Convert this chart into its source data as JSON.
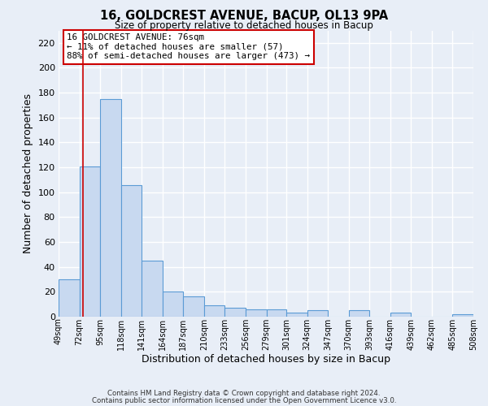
{
  "title": "16, GOLDCREST AVENUE, BACUP, OL13 9PA",
  "subtitle": "Size of property relative to detached houses in Bacup",
  "xlabel": "Distribution of detached houses by size in Bacup",
  "ylabel": "Number of detached properties",
  "bar_edges": [
    49,
    72,
    95,
    118,
    141,
    164,
    187,
    210,
    233,
    256,
    279,
    301,
    324,
    347,
    370,
    393,
    416,
    439,
    462,
    485,
    508
  ],
  "bar_heights": [
    30,
    121,
    175,
    106,
    45,
    20,
    16,
    9,
    7,
    6,
    6,
    3,
    5,
    0,
    5,
    0,
    3,
    0,
    0,
    2
  ],
  "bar_color": "#c8d9f0",
  "bar_edge_color": "#5b9bd5",
  "ylim": [
    0,
    230
  ],
  "yticks": [
    0,
    20,
    40,
    60,
    80,
    100,
    120,
    140,
    160,
    180,
    200,
    220
  ],
  "property_line_x": 76,
  "property_line_color": "#cc0000",
  "annotation_line1": "16 GOLDCREST AVENUE: 76sqm",
  "annotation_line2": "← 11% of detached houses are smaller (57)",
  "annotation_line3": "88% of semi-detached houses are larger (473) →",
  "footer1": "Contains HM Land Registry data © Crown copyright and database right 2024.",
  "footer2": "Contains public sector information licensed under the Open Government Licence v3.0.",
  "background_color": "#e8eef7",
  "plot_background_color": "#e8eef7",
  "grid_color": "#ffffff",
  "tick_labels": [
    "49sqm",
    "72sqm",
    "95sqm",
    "118sqm",
    "141sqm",
    "164sqm",
    "187sqm",
    "210sqm",
    "233sqm",
    "256sqm",
    "279sqm",
    "301sqm",
    "324sqm",
    "347sqm",
    "370sqm",
    "393sqm",
    "416sqm",
    "439sqm",
    "462sqm",
    "485sqm",
    "508sqm"
  ]
}
